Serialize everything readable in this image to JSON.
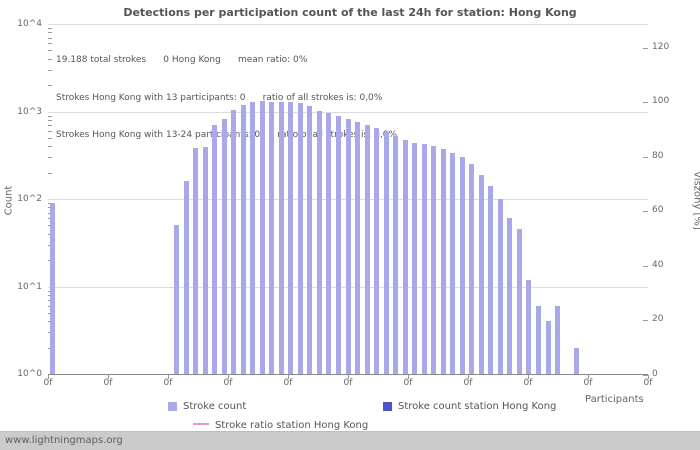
{
  "title": "Detections per participation count of the last 24h for station: Hong Kong",
  "annotations": [
    "19.188 total strokes      0 Hong Kong      mean ratio: 0%",
    "Strokes Hong Kong with 13 participants: 0      ratio of all strokes is: 0,0%",
    "Strokes Hong Kong with 13-24 participants: 0      ratio of all strokes is: 0,0%"
  ],
  "axes": {
    "left_label": "Count",
    "right_label": "Viszony [%]",
    "x_label": "Participants",
    "left_ticks": [
      "10^0",
      "10^1",
      "10^2",
      "10^3",
      "10^4"
    ],
    "right_ticks": [
      0,
      20,
      40,
      60,
      80,
      100,
      120
    ],
    "x_ticks": [
      "0f",
      "0f",
      "0f",
      "0f",
      "0f",
      "0f",
      "0f",
      "0f",
      "0f",
      "0f",
      "0f"
    ]
  },
  "legend": [
    {
      "label": "Stroke count",
      "color": "#a9a9ea",
      "type": "square"
    },
    {
      "label": "Stroke count station Hong Kong",
      "color": "#5151cc",
      "type": "square"
    },
    {
      "label": "Stroke ratio station Hong Kong",
      "color": "#e896ce",
      "type": "line"
    }
  ],
  "colors": {
    "bar": "#a9a9ea",
    "station_bar": "#5151cc",
    "ratio_line": "#e896ce",
    "grid": "#dcdcdc"
  },
  "footer": "www.lightningmaps.org",
  "chart_data": {
    "type": "bar",
    "title": "Detections per participation count of the last 24h for station: Hong Kong",
    "xlabel": "Participants",
    "ylabel_left": "Count",
    "ylabel_right": "Viszony [%]",
    "y_scale": "log",
    "ylim_left": [
      1,
      10000
    ],
    "ylim_right": [
      0,
      120
    ],
    "slots": 63,
    "total_strokes": 19188,
    "station_strokes": 0,
    "mean_ratio_percent": 0,
    "station_values_all_zero": true,
    "points": [
      [
        0,
        90
      ],
      [
        13,
        50
      ],
      [
        14,
        160
      ],
      [
        15,
        380
      ],
      [
        16,
        390
      ],
      [
        17,
        700
      ],
      [
        18,
        820
      ],
      [
        19,
        1050
      ],
      [
        20,
        1200
      ],
      [
        21,
        1280
      ],
      [
        22,
        1320
      ],
      [
        23,
        1300
      ],
      [
        24,
        1270
      ],
      [
        25,
        1300
      ],
      [
        26,
        1240
      ],
      [
        27,
        1150
      ],
      [
        28,
        1020
      ],
      [
        29,
        960
      ],
      [
        30,
        900
      ],
      [
        31,
        830
      ],
      [
        32,
        760
      ],
      [
        33,
        700
      ],
      [
        34,
        640
      ],
      [
        35,
        580
      ],
      [
        36,
        520
      ],
      [
        37,
        470
      ],
      [
        38,
        440
      ],
      [
        39,
        420
      ],
      [
        40,
        400
      ],
      [
        41,
        370
      ],
      [
        42,
        340
      ],
      [
        43,
        300
      ],
      [
        44,
        250
      ],
      [
        45,
        190
      ],
      [
        46,
        140
      ],
      [
        47,
        100
      ],
      [
        48,
        60
      ],
      [
        49,
        45
      ],
      [
        50,
        12
      ],
      [
        51,
        6
      ],
      [
        52,
        4
      ],
      [
        53,
        6
      ],
      [
        55,
        2
      ]
    ]
  }
}
